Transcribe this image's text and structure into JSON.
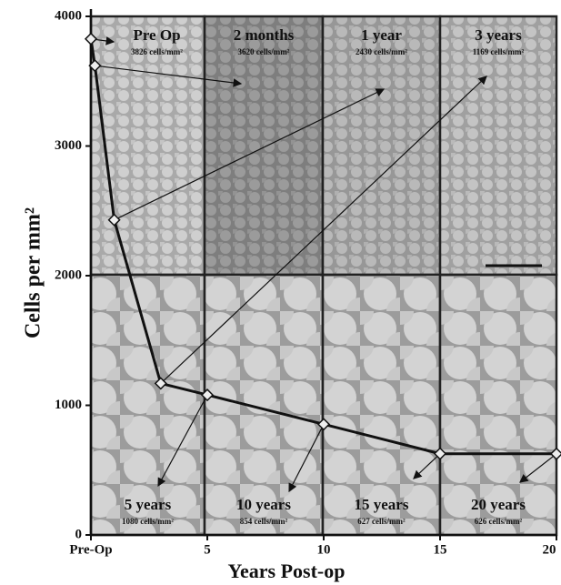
{
  "chart_data": {
    "type": "line",
    "xlabel": "Years Post-op",
    "ylabel": "Cells per mm²",
    "x": [
      0,
      0.17,
      1,
      3,
      5,
      10,
      15,
      20
    ],
    "values": [
      3826,
      3620,
      2430,
      1169,
      1080,
      854,
      627,
      626
    ],
    "color": "#111111",
    "xlim": [
      0,
      20
    ],
    "xticks": [
      {
        "value": 0,
        "label": "Pre-Op"
      },
      5,
      10,
      15,
      20
    ],
    "ylim": [
      0,
      4000
    ],
    "yticks": [
      0,
      1000,
      2000,
      3000,
      4000
    ],
    "panels": [
      {
        "title": "Pre Op",
        "count": "3826 cells/mm²"
      },
      {
        "title": "2 months",
        "count": "3620 cells/mm²"
      },
      {
        "title": "1 year",
        "count": "2430 cells/mm²"
      },
      {
        "title": "3 years",
        "count": "1169 cells/mm²"
      },
      {
        "title": "5 years",
        "count": "1080 cells/mm²"
      },
      {
        "title": "10 years",
        "count": "854 cells/mm²"
      },
      {
        "title": "15 years",
        "count": "627 cells/mm²"
      },
      {
        "title": "20 years",
        "count": "626 cells/mm²"
      }
    ]
  }
}
